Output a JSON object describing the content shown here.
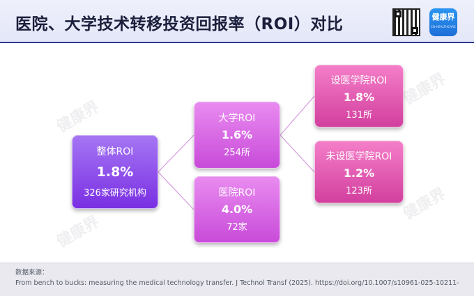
{
  "header": {
    "title": "医院、大学技术转移投资回报率（ROI）对比",
    "brand": {
      "name": "健康界",
      "tagline": "CN-HEALTHCARE"
    }
  },
  "diagram": {
    "root": {
      "name": "整体ROI",
      "value": "1.8%",
      "count": "326家研究机构"
    },
    "university": {
      "name": "大学ROI",
      "value": "1.6%",
      "count": "254所"
    },
    "hospital": {
      "name": "医院ROI",
      "value": "4.0%",
      "count": "72家"
    },
    "with_med": {
      "name": "设医学院ROI",
      "value": "1.8%",
      "count": "131所"
    },
    "without_med": {
      "name": "未设医学院ROI",
      "value": "1.2%",
      "count": "123所"
    }
  },
  "watermark": {
    "text": "健康界"
  },
  "footer": {
    "label": "数据来源：",
    "source": "From bench to bucks: measuring the medical technology transfer. J Technol Transf (2025). https://doi.org/10.1007/s10961-025-10211-"
  },
  "colors": {
    "root": "#7a2fe3",
    "mid": "#c84bd9",
    "leaf": "#d23f9e",
    "connector": "#d79ae0",
    "header_line": "#2f3a8c"
  }
}
